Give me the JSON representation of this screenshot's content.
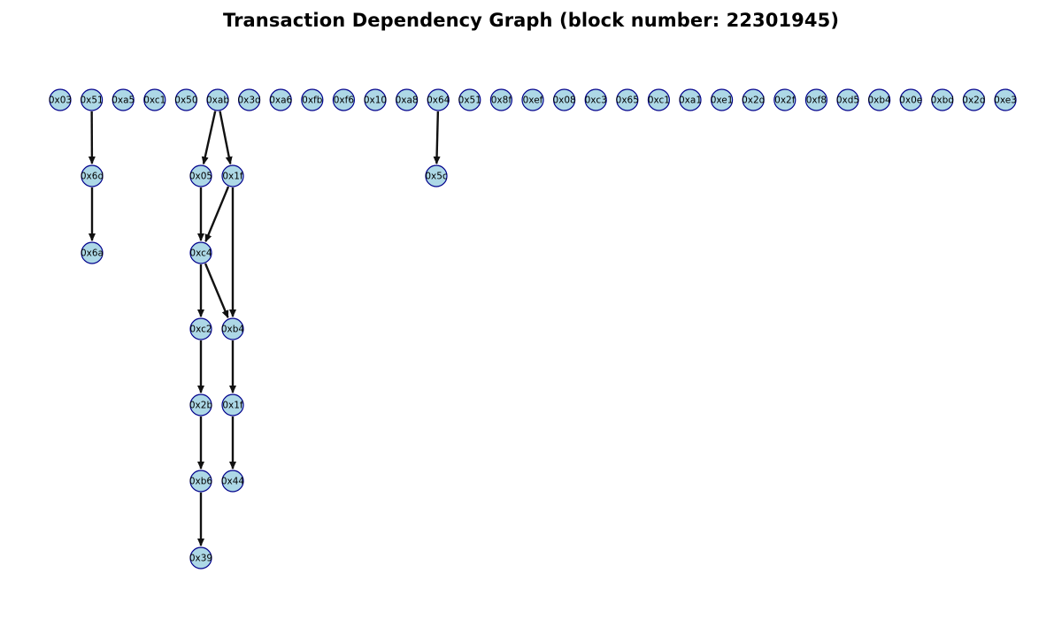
{
  "title": "Transaction Dependency Graph (block number: 22301945)",
  "colors": {
    "node_fill": "#add8e6",
    "node_stroke": "#00008b",
    "edge": "#111111"
  },
  "nodes": [
    {
      "id": "n0",
      "label": "0x03"
    },
    {
      "id": "n1",
      "label": "0x51"
    },
    {
      "id": "n2",
      "label": "0xa5"
    },
    {
      "id": "n3",
      "label": "0xc1"
    },
    {
      "id": "n4",
      "label": "0x50"
    },
    {
      "id": "n5",
      "label": "0xab"
    },
    {
      "id": "n6",
      "label": "0x3d"
    },
    {
      "id": "n7",
      "label": "0xa6"
    },
    {
      "id": "n8",
      "label": "0xfb"
    },
    {
      "id": "n9",
      "label": "0xf6"
    },
    {
      "id": "n10",
      "label": "0x10"
    },
    {
      "id": "n11",
      "label": "0xa8"
    },
    {
      "id": "n12",
      "label": "0x64"
    },
    {
      "id": "n13",
      "label": "0x51"
    },
    {
      "id": "n14",
      "label": "0x8f"
    },
    {
      "id": "n15",
      "label": "0xef"
    },
    {
      "id": "n16",
      "label": "0x08"
    },
    {
      "id": "n17",
      "label": "0xc3"
    },
    {
      "id": "n18",
      "label": "0x65"
    },
    {
      "id": "n19",
      "label": "0xc1"
    },
    {
      "id": "n20",
      "label": "0xa1"
    },
    {
      "id": "n21",
      "label": "0xe1"
    },
    {
      "id": "n22",
      "label": "0x2d"
    },
    {
      "id": "n23",
      "label": "0x2f"
    },
    {
      "id": "n24",
      "label": "0xf8"
    },
    {
      "id": "n25",
      "label": "0xd5"
    },
    {
      "id": "n26",
      "label": "0xb4"
    },
    {
      "id": "n27",
      "label": "0x0e"
    },
    {
      "id": "n28",
      "label": "0xbd"
    },
    {
      "id": "n29",
      "label": "0x2d"
    },
    {
      "id": "n30",
      "label": "0xe3"
    },
    {
      "id": "n31",
      "label": "0x6d"
    },
    {
      "id": "n32",
      "label": "0x6a"
    },
    {
      "id": "n33",
      "label": "0x05"
    },
    {
      "id": "n34",
      "label": "0x1f"
    },
    {
      "id": "n35",
      "label": "0xc4"
    },
    {
      "id": "n36",
      "label": "0xc2"
    },
    {
      "id": "n37",
      "label": "0xb4"
    },
    {
      "id": "n38",
      "label": "0x2b"
    },
    {
      "id": "n39",
      "label": "0x1f"
    },
    {
      "id": "n40",
      "label": "0xb6"
    },
    {
      "id": "n41",
      "label": "0x44"
    },
    {
      "id": "n42",
      "label": "0x39"
    },
    {
      "id": "n43",
      "label": "0x5c"
    }
  ],
  "edges": [
    {
      "from": "n1",
      "to": "n31"
    },
    {
      "from": "n31",
      "to": "n32"
    },
    {
      "from": "n5",
      "to": "n33"
    },
    {
      "from": "n5",
      "to": "n34"
    },
    {
      "from": "n33",
      "to": "n35"
    },
    {
      "from": "n34",
      "to": "n35"
    },
    {
      "from": "n34",
      "to": "n37"
    },
    {
      "from": "n35",
      "to": "n36"
    },
    {
      "from": "n35",
      "to": "n37"
    },
    {
      "from": "n36",
      "to": "n38"
    },
    {
      "from": "n37",
      "to": "n39"
    },
    {
      "from": "n38",
      "to": "n40"
    },
    {
      "from": "n39",
      "to": "n41"
    },
    {
      "from": "n40",
      "to": "n42"
    },
    {
      "from": "n12",
      "to": "n43"
    }
  ]
}
